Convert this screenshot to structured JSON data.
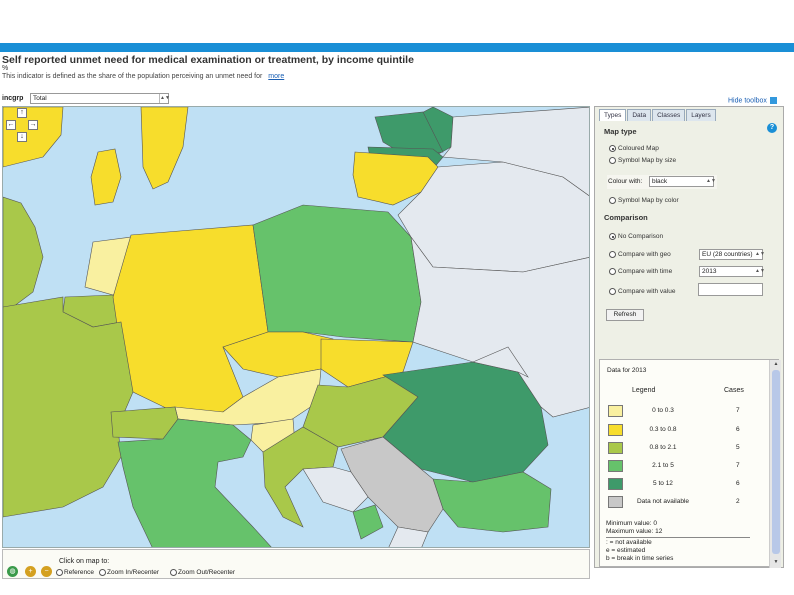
{
  "header": {
    "title": "Self reported unmet need for medical examination or treatment, by income quintile",
    "unit": "%",
    "description": "This indicator is defined as the share of the population perceiving an unmet need for",
    "more_link": "more"
  },
  "filter": {
    "label": "incgrp",
    "value": "Total"
  },
  "map_nav": {
    "up": "↑",
    "left": "←",
    "right": "→",
    "down": "↓"
  },
  "bottom_toolbar": {
    "click_label": "Click on map to:",
    "options": [
      "Reference",
      "Zoom In/Recenter",
      "Zoom Out/Recenter"
    ],
    "tools": [
      "globe-icon",
      "zoom-in-icon",
      "zoom-out-icon"
    ]
  },
  "toolbox": {
    "hide_label": "Hide toolbox",
    "tabs": [
      "Types",
      "Data",
      "Classes",
      "Layers"
    ],
    "active_tab": "Types",
    "map_type_heading": "Map type",
    "map_type_options": [
      "Coloured Map",
      "Symbol Map by size",
      "Symbol Map by color"
    ],
    "colour_with_label": "Colour with:",
    "colour_with_value": "black",
    "comparison_heading": "Comparison",
    "comparison_options": [
      "No Comparison",
      "Compare with geo",
      "Compare with time",
      "Compare with value"
    ],
    "geo_value": "EU (28 countries)",
    "time_value": "2013",
    "value_value": "",
    "refresh_label": "Refresh"
  },
  "data_panel": {
    "heading": "Data for 2013",
    "legend_header": "Legend",
    "cases_header": "Cases",
    "classes": [
      {
        "range": "0  to  0.3",
        "cases": "7",
        "color": "#f9f0a0"
      },
      {
        "range": "0.3  to  0.8",
        "cases": "6",
        "color": "#f7dd2c"
      },
      {
        "range": "0.8  to  2.1",
        "cases": "5",
        "color": "#a9c84a"
      },
      {
        "range": "2.1  to  5",
        "cases": "7",
        "color": "#66c26b"
      },
      {
        "range": "5  to  12",
        "cases": "6",
        "color": "#3e9a6a"
      },
      {
        "range": "Data not available",
        "cases": "2",
        "color": "#c8c8c8"
      }
    ],
    "minimum": "Minimum value: 0",
    "maximum": "Maximum value: 12",
    "notes": [
      ": = not available",
      "e = estimated",
      "b = break in time series"
    ]
  },
  "colors": {
    "accent": "#1a8fd6",
    "sea": "#bfe0f4",
    "non_eu": "#e4e9ef"
  }
}
